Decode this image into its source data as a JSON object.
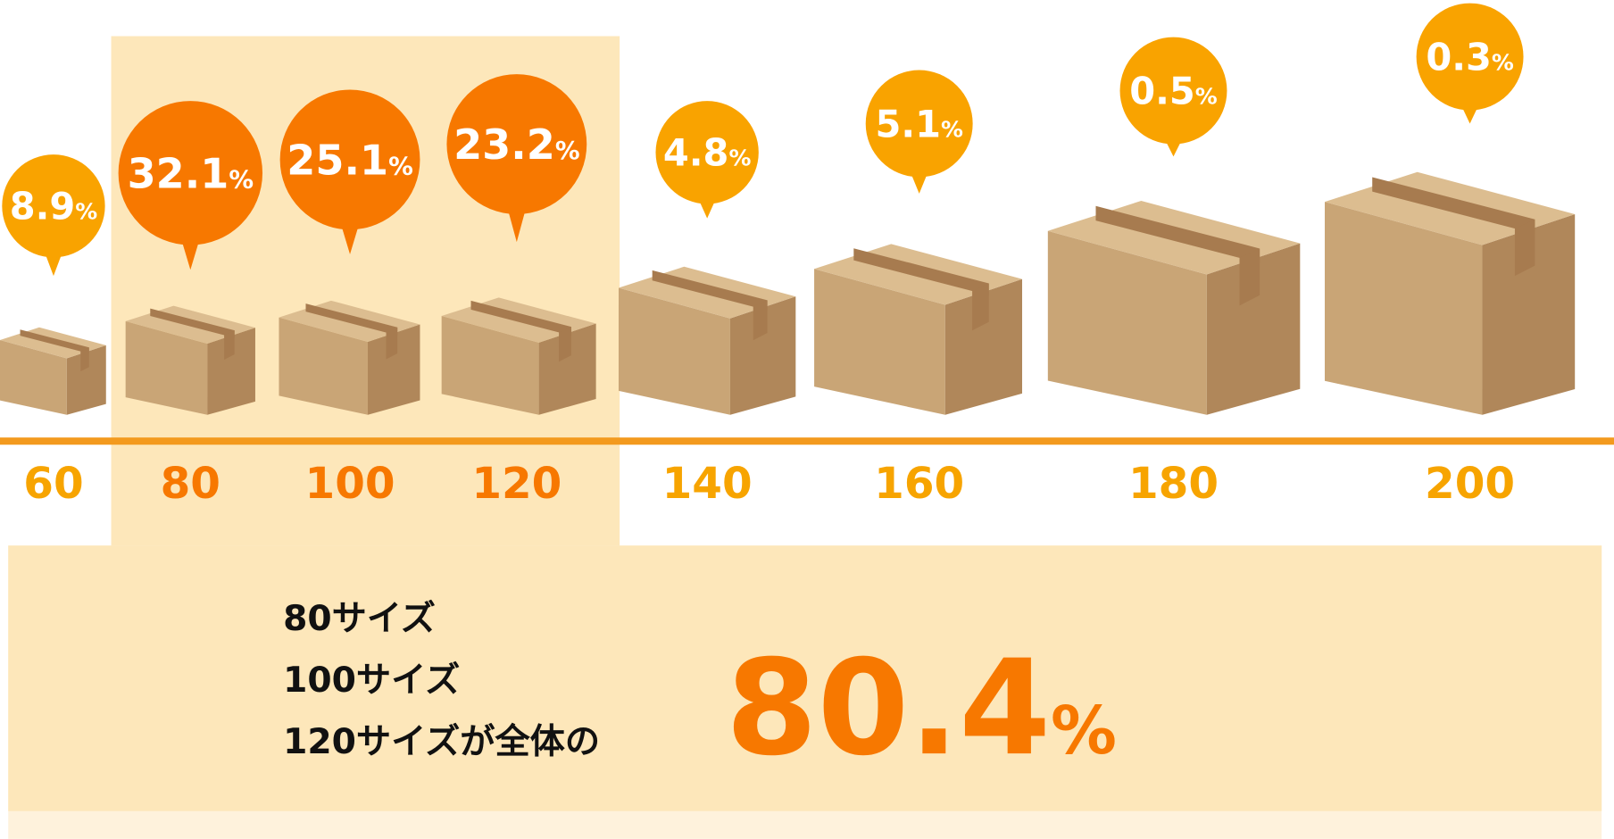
{
  "items": [
    {
      "size": "60",
      "share": "8.9"
    },
    {
      "size": "80",
      "share": "32.1"
    },
    {
      "size": "100",
      "share": "25.1"
    },
    {
      "size": "120",
      "share": "23.2"
    },
    {
      "size": "140",
      "share": "4.8"
    },
    {
      "size": "160",
      "share": "5.1"
    },
    {
      "size": "180",
      "share": "0.5"
    },
    {
      "size": "200",
      "share": "0.3"
    }
  ],
  "unit": "%",
  "summary": {
    "lines": [
      "80サイズ",
      "100サイズ",
      "120サイズが全体の"
    ],
    "total": "80.4"
  }
}
